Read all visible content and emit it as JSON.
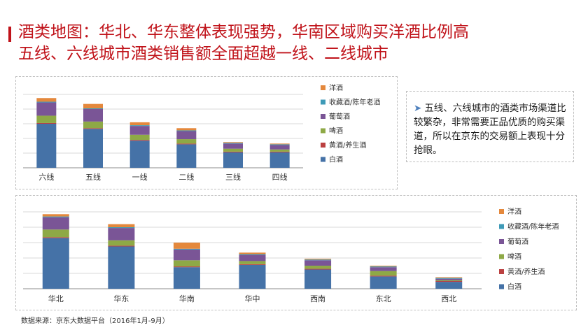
{
  "title": {
    "line1": "酒类地图：华北、华东整体表现强势，华南区域购买洋酒比例高",
    "line2": "五线、六线城市酒类销售额全面超越一线、二线城市"
  },
  "note": {
    "text": "五线、六线城市的酒类市场渠道比较繁杂，非常需要正品优质的购买渠道，所以在京东的交易额上表现十分抢眼。"
  },
  "source": "数据来源：京东大数据平台（2016年1月-9月）",
  "colors": {
    "洋酒": "#e4883c",
    "收藏酒/陈年老酒": "#3e9ab7",
    "葡萄酒": "#7a5596",
    "啤酒": "#8ea946",
    "黄酒/养生酒": "#bb4040",
    "白酒": "#4572a7"
  },
  "chart_data": [
    {
      "type": "bar",
      "stacked": true,
      "categories": [
        "六线",
        "五线",
        "一线",
        "二线",
        "三线",
        "四线"
      ],
      "ylim": [
        0,
        100
      ],
      "grid": true,
      "legend": "right",
      "series": [
        {
          "name": "白酒",
          "values": [
            60,
            53,
            37,
            32,
            21,
            21
          ]
        },
        {
          "name": "黄酒/养生酒",
          "values": [
            1,
            1,
            1,
            1,
            1,
            1
          ]
        },
        {
          "name": "啤酒",
          "values": [
            10,
            9,
            7,
            6,
            4,
            3
          ]
        },
        {
          "name": "葡萄酒",
          "values": [
            18,
            17,
            12,
            11,
            7,
            6
          ]
        },
        {
          "name": "收藏酒/陈年老酒",
          "values": [
            1,
            1,
            1,
            1,
            1,
            1
          ]
        },
        {
          "name": "洋酒",
          "values": [
            5,
            6,
            4,
            3,
            1,
            1
          ]
        }
      ]
    },
    {
      "type": "bar",
      "stacked": true,
      "categories": [
        "华北",
        "华东",
        "华南",
        "华中",
        "西南",
        "东北",
        "西北"
      ],
      "ylim": [
        0,
        100
      ],
      "grid": true,
      "legend": "right",
      "series": [
        {
          "name": "白酒",
          "values": [
            66,
            55,
            28,
            31,
            25,
            16,
            9
          ]
        },
        {
          "name": "黄酒/养生酒",
          "values": [
            1,
            1,
            1,
            1,
            1,
            1,
            1
          ]
        },
        {
          "name": "啤酒",
          "values": [
            10,
            7,
            8,
            4,
            4,
            6,
            1
          ]
        },
        {
          "name": "葡萄酒",
          "values": [
            16,
            16,
            14,
            8,
            7,
            5,
            2
          ]
        },
        {
          "name": "收藏酒/陈年老酒",
          "values": [
            1,
            1,
            1,
            1,
            1,
            1,
            1
          ]
        },
        {
          "name": "洋酒",
          "values": [
            3,
            4,
            8,
            2,
            1,
            1,
            1
          ]
        }
      ]
    }
  ]
}
